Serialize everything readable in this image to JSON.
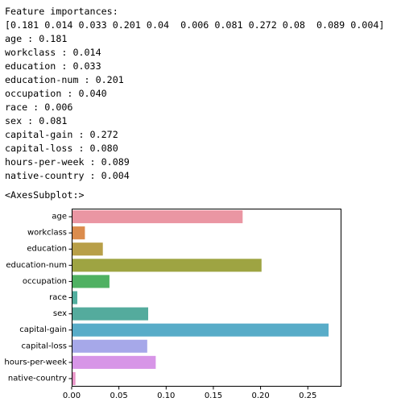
{
  "output": {
    "header": "Feature importances:",
    "array_line": "[0.181 0.014 0.033 0.201 0.04  0.006 0.081 0.272 0.08  0.089 0.004]",
    "feature_lines": [
      "age : 0.181",
      "workclass : 0.014",
      "education : 0.033",
      "education-num : 0.201",
      "occupation : 0.040",
      "race : 0.006",
      "sex : 0.081",
      "capital-gain : 0.272",
      "capital-loss : 0.080",
      "hours-per-week : 0.089",
      "native-country : 0.004"
    ],
    "repr": "<AxesSubplot:>"
  },
  "chart_data": {
    "type": "bar",
    "orientation": "horizontal",
    "categories": [
      "age",
      "workclass",
      "education",
      "education-num",
      "occupation",
      "race",
      "sex",
      "capital-gain",
      "capital-loss",
      "hours-per-week",
      "native-country"
    ],
    "values": [
      0.181,
      0.014,
      0.033,
      0.201,
      0.04,
      0.006,
      0.081,
      0.272,
      0.08,
      0.089,
      0.004
    ],
    "colors": [
      "#ea96a3",
      "#db8c4d",
      "#b89f48",
      "#9ea442",
      "#4fb162",
      "#52ae9f",
      "#54ab9d",
      "#58acc8",
      "#a6a8e9",
      "#d795e7",
      "#e995c8"
    ],
    "xticks": [
      0.0,
      0.05,
      0.1,
      0.15,
      0.2,
      0.25
    ],
    "xtick_labels": [
      "0.00",
      "0.05",
      "0.10",
      "0.15",
      "0.20",
      "0.25"
    ],
    "xlim": [
      0,
      0.2856
    ],
    "title": "",
    "xlabel": "",
    "ylabel": "",
    "grid": false
  }
}
